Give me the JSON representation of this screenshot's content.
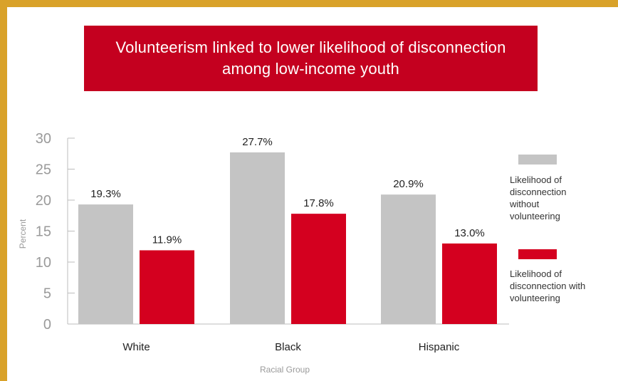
{
  "title_line1": "Volunteerism linked to lower likelihood of disconnection",
  "title_line2": "among low-income youth",
  "colors": {
    "frame": "#d9a22a",
    "banner": "#c4001f",
    "series_without": "#c4c4c4",
    "series_with": "#d4001f",
    "axis_text": "#9a9a9a"
  },
  "chart_data": {
    "type": "bar",
    "title": "Volunteerism linked to lower likelihood of disconnection among low-income youth",
    "categories": [
      "White",
      "Black",
      "Hispanic"
    ],
    "series": [
      {
        "name": "Likelihood of disconnection without volunteering",
        "name_lines": [
          "Likelihood of",
          "disconnection",
          "without",
          "volunteering"
        ],
        "values": [
          19.3,
          27.7,
          20.9
        ],
        "labels": [
          "19.3%",
          "27.7%",
          "20.9%"
        ],
        "color": "#c4c4c4"
      },
      {
        "name": "Likelihood of disconnection with volunteering",
        "name_lines": [
          "Likelihood of",
          "disconnection with",
          "volunteering"
        ],
        "values": [
          11.9,
          17.8,
          13.0
        ],
        "labels": [
          "11.9%",
          "17.8%",
          "13.0%"
        ],
        "color": "#d4001f"
      }
    ],
    "xlabel": "Racial Group",
    "ylabel": "Percent",
    "ylim": [
      0,
      30
    ],
    "yticks": [
      0,
      5,
      10,
      15,
      20,
      25,
      30
    ],
    "grid": false,
    "legend": "right"
  }
}
